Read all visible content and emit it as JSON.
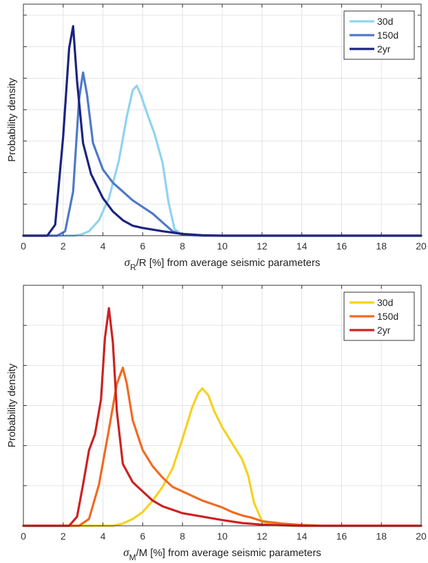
{
  "chart_data": [
    {
      "type": "line",
      "title": "",
      "xlabel_symbol": "σ",
      "xlabel_sub": "R",
      "xlabel_rest": "/R [%] from average seismic parameters",
      "ylabel": "Probability density",
      "xlim": [
        0,
        20
      ],
      "ylim": [
        0,
        1.05
      ],
      "xticks": [
        0,
        2,
        4,
        6,
        8,
        10,
        12,
        14,
        16,
        18,
        20
      ],
      "yticks": [
        0,
        0.143,
        0.286,
        0.429,
        0.571,
        0.714,
        0.857,
        1.0
      ],
      "grid": true,
      "legend_position": "top-right",
      "series": [
        {
          "name": "30d",
          "color": "#8fd3f2",
          "x": [
            0,
            2.5,
            2.9,
            3.3,
            3.8,
            4.3,
            4.8,
            5.2,
            5.5,
            5.7,
            5.9,
            6.2,
            6.6,
            7.0,
            7.3,
            7.6,
            8.0,
            9,
            20
          ],
          "y": [
            0,
            0,
            0.005,
            0.02,
            0.07,
            0.17,
            0.34,
            0.54,
            0.66,
            0.68,
            0.64,
            0.56,
            0.46,
            0.33,
            0.15,
            0.03,
            0.004,
            0,
            0
          ]
        },
        {
          "name": "150d",
          "color": "#4f79c8",
          "x": [
            0,
            1.7,
            2.1,
            2.5,
            2.8,
            3.0,
            3.2,
            3.5,
            4.0,
            4.5,
            5.0,
            5.5,
            6.0,
            6.5,
            7.0,
            7.5,
            8.0,
            9,
            20
          ],
          "y": [
            0,
            0,
            0.02,
            0.2,
            0.62,
            0.74,
            0.64,
            0.42,
            0.3,
            0.24,
            0.2,
            0.16,
            0.13,
            0.1,
            0.06,
            0.02,
            0.005,
            0,
            0
          ]
        },
        {
          "name": "2yr",
          "color": "#1c2380",
          "x": [
            0,
            1.2,
            1.6,
            2.0,
            2.3,
            2.5,
            2.7,
            3.0,
            3.4,
            4.0,
            4.5,
            5.0,
            5.5,
            6.0,
            7.0,
            8.0,
            9.0,
            10,
            20
          ],
          "y": [
            0,
            0,
            0.05,
            0.45,
            0.85,
            0.95,
            0.7,
            0.42,
            0.28,
            0.17,
            0.11,
            0.07,
            0.045,
            0.035,
            0.02,
            0.008,
            0.002,
            0,
            0
          ]
        }
      ]
    },
    {
      "type": "line",
      "title": "",
      "xlabel_symbol": "σ",
      "xlabel_sub": "M",
      "xlabel_rest": "/M [%] from average seismic parameters",
      "ylabel": "Probability density",
      "xlim": [
        0,
        20
      ],
      "ylim": [
        0,
        1.05
      ],
      "xticks": [
        0,
        2,
        4,
        6,
        8,
        10,
        12,
        14,
        16,
        18,
        20
      ],
      "yticks": [
        0,
        0.175,
        0.35,
        0.525,
        0.7,
        0.875
      ],
      "grid": true,
      "legend_position": "top-right",
      "series": [
        {
          "name": "30d",
          "color": "#f5d21f",
          "x": [
            0,
            4.5,
            5.0,
            5.5,
            6.0,
            6.5,
            7.0,
            7.5,
            8.0,
            8.5,
            8.8,
            9.0,
            9.3,
            9.6,
            10.0,
            10.5,
            11.0,
            11.3,
            11.6,
            12.0,
            12.5,
            13.5,
            20
          ],
          "y": [
            0,
            0,
            0.01,
            0.03,
            0.06,
            0.11,
            0.17,
            0.25,
            0.38,
            0.52,
            0.58,
            0.6,
            0.57,
            0.5,
            0.43,
            0.36,
            0.29,
            0.22,
            0.1,
            0.02,
            0.006,
            0,
            0
          ]
        },
        {
          "name": "150d",
          "color": "#f26a21",
          "x": [
            0,
            2.8,
            3.3,
            3.8,
            4.3,
            4.7,
            5.0,
            5.2,
            5.5,
            6.0,
            6.5,
            7.0,
            7.5,
            8.0,
            8.5,
            9.0,
            9.5,
            10.0,
            10.5,
            11.0,
            11.5,
            12.0,
            13.0,
            14.0,
            15.0,
            20
          ],
          "y": [
            0,
            0,
            0.03,
            0.18,
            0.42,
            0.62,
            0.69,
            0.62,
            0.46,
            0.33,
            0.26,
            0.21,
            0.17,
            0.15,
            0.13,
            0.11,
            0.095,
            0.08,
            0.06,
            0.045,
            0.035,
            0.02,
            0.01,
            0.004,
            0,
            0
          ]
        },
        {
          "name": "2yr",
          "color": "#cc2222",
          "x": [
            0,
            2.3,
            2.7,
            3.0,
            3.3,
            3.6,
            3.9,
            4.1,
            4.3,
            4.5,
            4.7,
            5.0,
            5.5,
            6.0,
            6.5,
            7.0,
            8.0,
            9.0,
            10.0,
            11.0,
            12.0,
            14.0,
            20
          ],
          "y": [
            0,
            0,
            0.04,
            0.18,
            0.33,
            0.4,
            0.55,
            0.82,
            0.95,
            0.8,
            0.5,
            0.27,
            0.19,
            0.15,
            0.11,
            0.085,
            0.055,
            0.04,
            0.025,
            0.012,
            0.005,
            0,
            0
          ]
        }
      ]
    }
  ]
}
